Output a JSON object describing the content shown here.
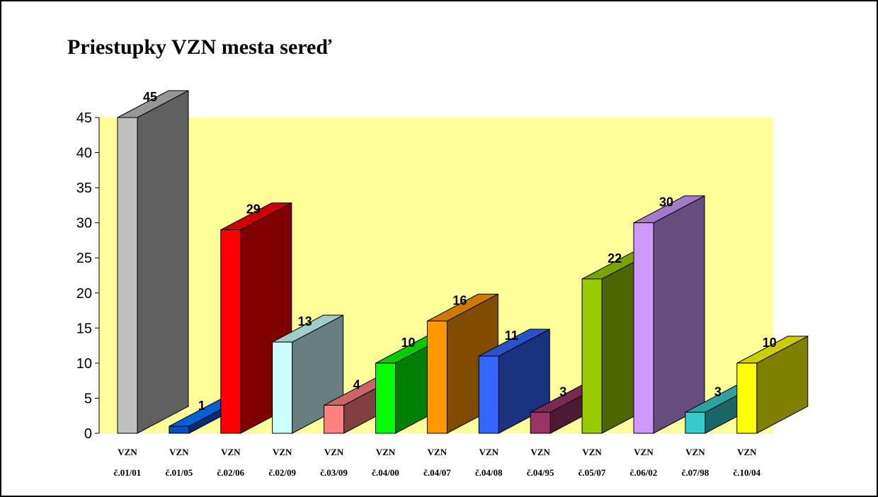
{
  "chart_data": {
    "type": "bar",
    "title": "Priestupky VZN mesta sereď",
    "xlabel": "",
    "ylabel": "",
    "ylim": [
      0,
      45
    ],
    "yticks": [
      0,
      5,
      10,
      15,
      20,
      25,
      30,
      35,
      40,
      45
    ],
    "grid": false,
    "legend": "none",
    "plot_background": "#ffff99",
    "categories": [
      {
        "line1": "VZN",
        "line2": "č.01/01"
      },
      {
        "line1": "VZN",
        "line2": "č.01/05"
      },
      {
        "line1": "VZN",
        "line2": "č.02/06"
      },
      {
        "line1": "VZN",
        "line2": "č.02/09"
      },
      {
        "line1": "VZN",
        "line2": "č.03/09"
      },
      {
        "line1": "VZN",
        "line2": "č.04/00"
      },
      {
        "line1": "VZN",
        "line2": "č.04/07"
      },
      {
        "line1": "VZN",
        "line2": "č.04/08"
      },
      {
        "line1": "VZN",
        "line2": "č.04/95"
      },
      {
        "line1": "VZN",
        "line2": "č.05/07"
      },
      {
        "line1": "VZN",
        "line2": "č.06/02"
      },
      {
        "line1": "VZN",
        "line2": "č.07/98"
      },
      {
        "line1": "VZN",
        "line2": "č.10/04"
      }
    ],
    "values": [
      45,
      1,
      29,
      13,
      4,
      10,
      16,
      11,
      3,
      22,
      30,
      3,
      10
    ],
    "value_labels": [
      "45",
      "1",
      "29",
      "13",
      "4",
      "10",
      "16",
      "11",
      "3",
      "22",
      "30",
      "3",
      "10"
    ],
    "colors": [
      {
        "front": "#c0c0c0",
        "side": "#606060",
        "top": "#969696"
      },
      {
        "front": "#0050c0",
        "side": "#003070",
        "top": "#0060d8"
      },
      {
        "front": "#ff0000",
        "side": "#800000",
        "top": "#cc0000"
      },
      {
        "front": "#ccffff",
        "side": "#668080",
        "top": "#a0cccc"
      },
      {
        "front": "#ff8080",
        "side": "#804040",
        "top": "#cc6666"
      },
      {
        "front": "#00ff00",
        "side": "#008000",
        "top": "#00cc00"
      },
      {
        "front": "#ff9900",
        "side": "#804d00",
        "top": "#cc7a00"
      },
      {
        "front": "#3366ff",
        "side": "#1a3380",
        "top": "#2952cc"
      },
      {
        "front": "#993366",
        "side": "#4d1a33",
        "top": "#7a2952"
      },
      {
        "front": "#99cc00",
        "side": "#4d6600",
        "top": "#7aa300"
      },
      {
        "front": "#cc99ff",
        "side": "#664d80",
        "top": "#a37acc"
      },
      {
        "front": "#33cccc",
        "side": "#1a6666",
        "top": "#29a3a3"
      },
      {
        "front": "#ffff00",
        "side": "#808000",
        "top": "#cccc00"
      }
    ]
  }
}
